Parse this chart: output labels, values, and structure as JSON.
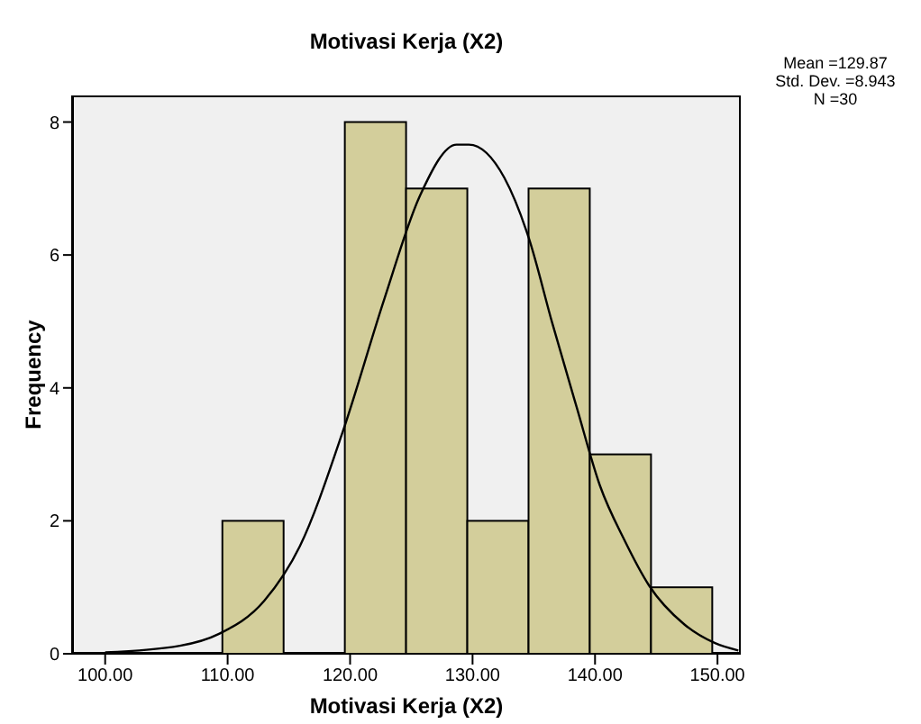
{
  "chart_data": {
    "type": "histogram",
    "title": "Motivasi Kerja (X2)",
    "xlabel": "Motivasi Kerja (X2)",
    "ylabel": "Frequency",
    "bins": [
      109.5,
      114.5,
      119.5,
      124.5,
      129.5,
      134.5,
      139.5,
      144.5,
      149.5
    ],
    "values": [
      2,
      0,
      8,
      7,
      2,
      7,
      3,
      1
    ],
    "color": "#d3ce9b",
    "series": [
      {
        "type": "line",
        "color": "#000000",
        "x": [
          100,
          106.1,
          109.3,
          113,
          115.9,
          119.4,
          122.8,
          125.7,
          128.7,
          129.7,
          132.6,
          134.6,
          136.5,
          138.5,
          140.4,
          142.4,
          144.4,
          147.3,
          149.8,
          151.7
        ],
        "values": [
          0.02,
          0.12,
          0.3,
          0.8,
          1.62,
          3.34,
          5.34,
          6.89,
          7.66,
          7.66,
          7.16,
          6.25,
          4.98,
          3.71,
          2.53,
          1.71,
          1.03,
          0.44,
          0.16,
          0.05
        ]
      }
    ],
    "xlim": [
      97.3,
      151.9
    ],
    "ylim": [
      0,
      8.4
    ],
    "xticks": [
      {
        "value": 100,
        "label": "100.00"
      },
      {
        "value": 110,
        "label": "110.00"
      },
      {
        "value": 120,
        "label": "120.00"
      },
      {
        "value": 130,
        "label": "130.00"
      },
      {
        "value": 140,
        "label": "140.00"
      },
      {
        "value": 150,
        "label": "150.00"
      }
    ],
    "yticks": [
      0,
      2,
      4,
      6,
      8
    ],
    "marker": "none",
    "annotations": [
      "Mean =129.87",
      "Std. Dev. =8.943",
      "N =30"
    ]
  }
}
